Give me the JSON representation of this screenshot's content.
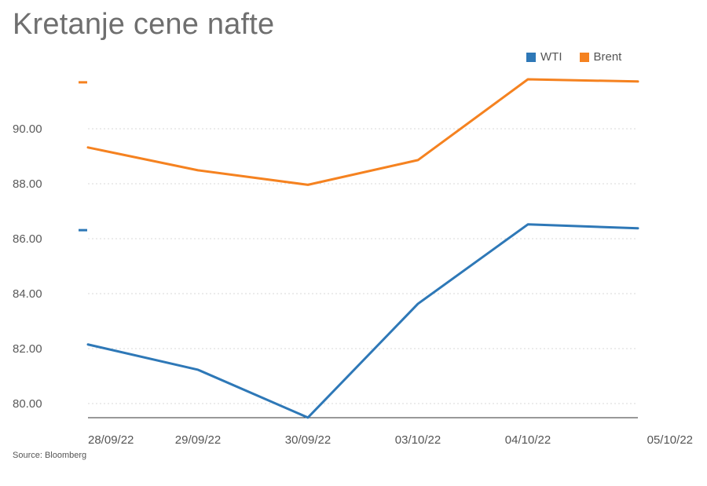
{
  "title": "Kretanje cene nafte",
  "source": "Source: Bloomberg",
  "chart_data": {
    "type": "line",
    "title": "Kretanje cene nafte",
    "categories": [
      "28/09/22",
      "29/09/22",
      "30/09/22",
      "03/10/22",
      "04/10/22",
      "05/10/22"
    ],
    "series": [
      {
        "name": "WTI",
        "color": "#2e78b7",
        "values": [
          82.15,
          81.23,
          79.49,
          83.63,
          86.52,
          86.38
        ],
        "last_marker": 86.31
      },
      {
        "name": "Brent",
        "color": "#f58220",
        "values": [
          89.32,
          88.49,
          87.96,
          88.86,
          91.8,
          91.72
        ],
        "last_marker": 91.69
      }
    ],
    "yticks": [
      "80.00",
      "82.00",
      "84.00",
      "86.00",
      "88.00",
      "90.00"
    ],
    "ylim": [
      79.5,
      93.0
    ],
    "grid": true,
    "legend_position": "top-right",
    "xlabel": "",
    "ylabel": ""
  }
}
